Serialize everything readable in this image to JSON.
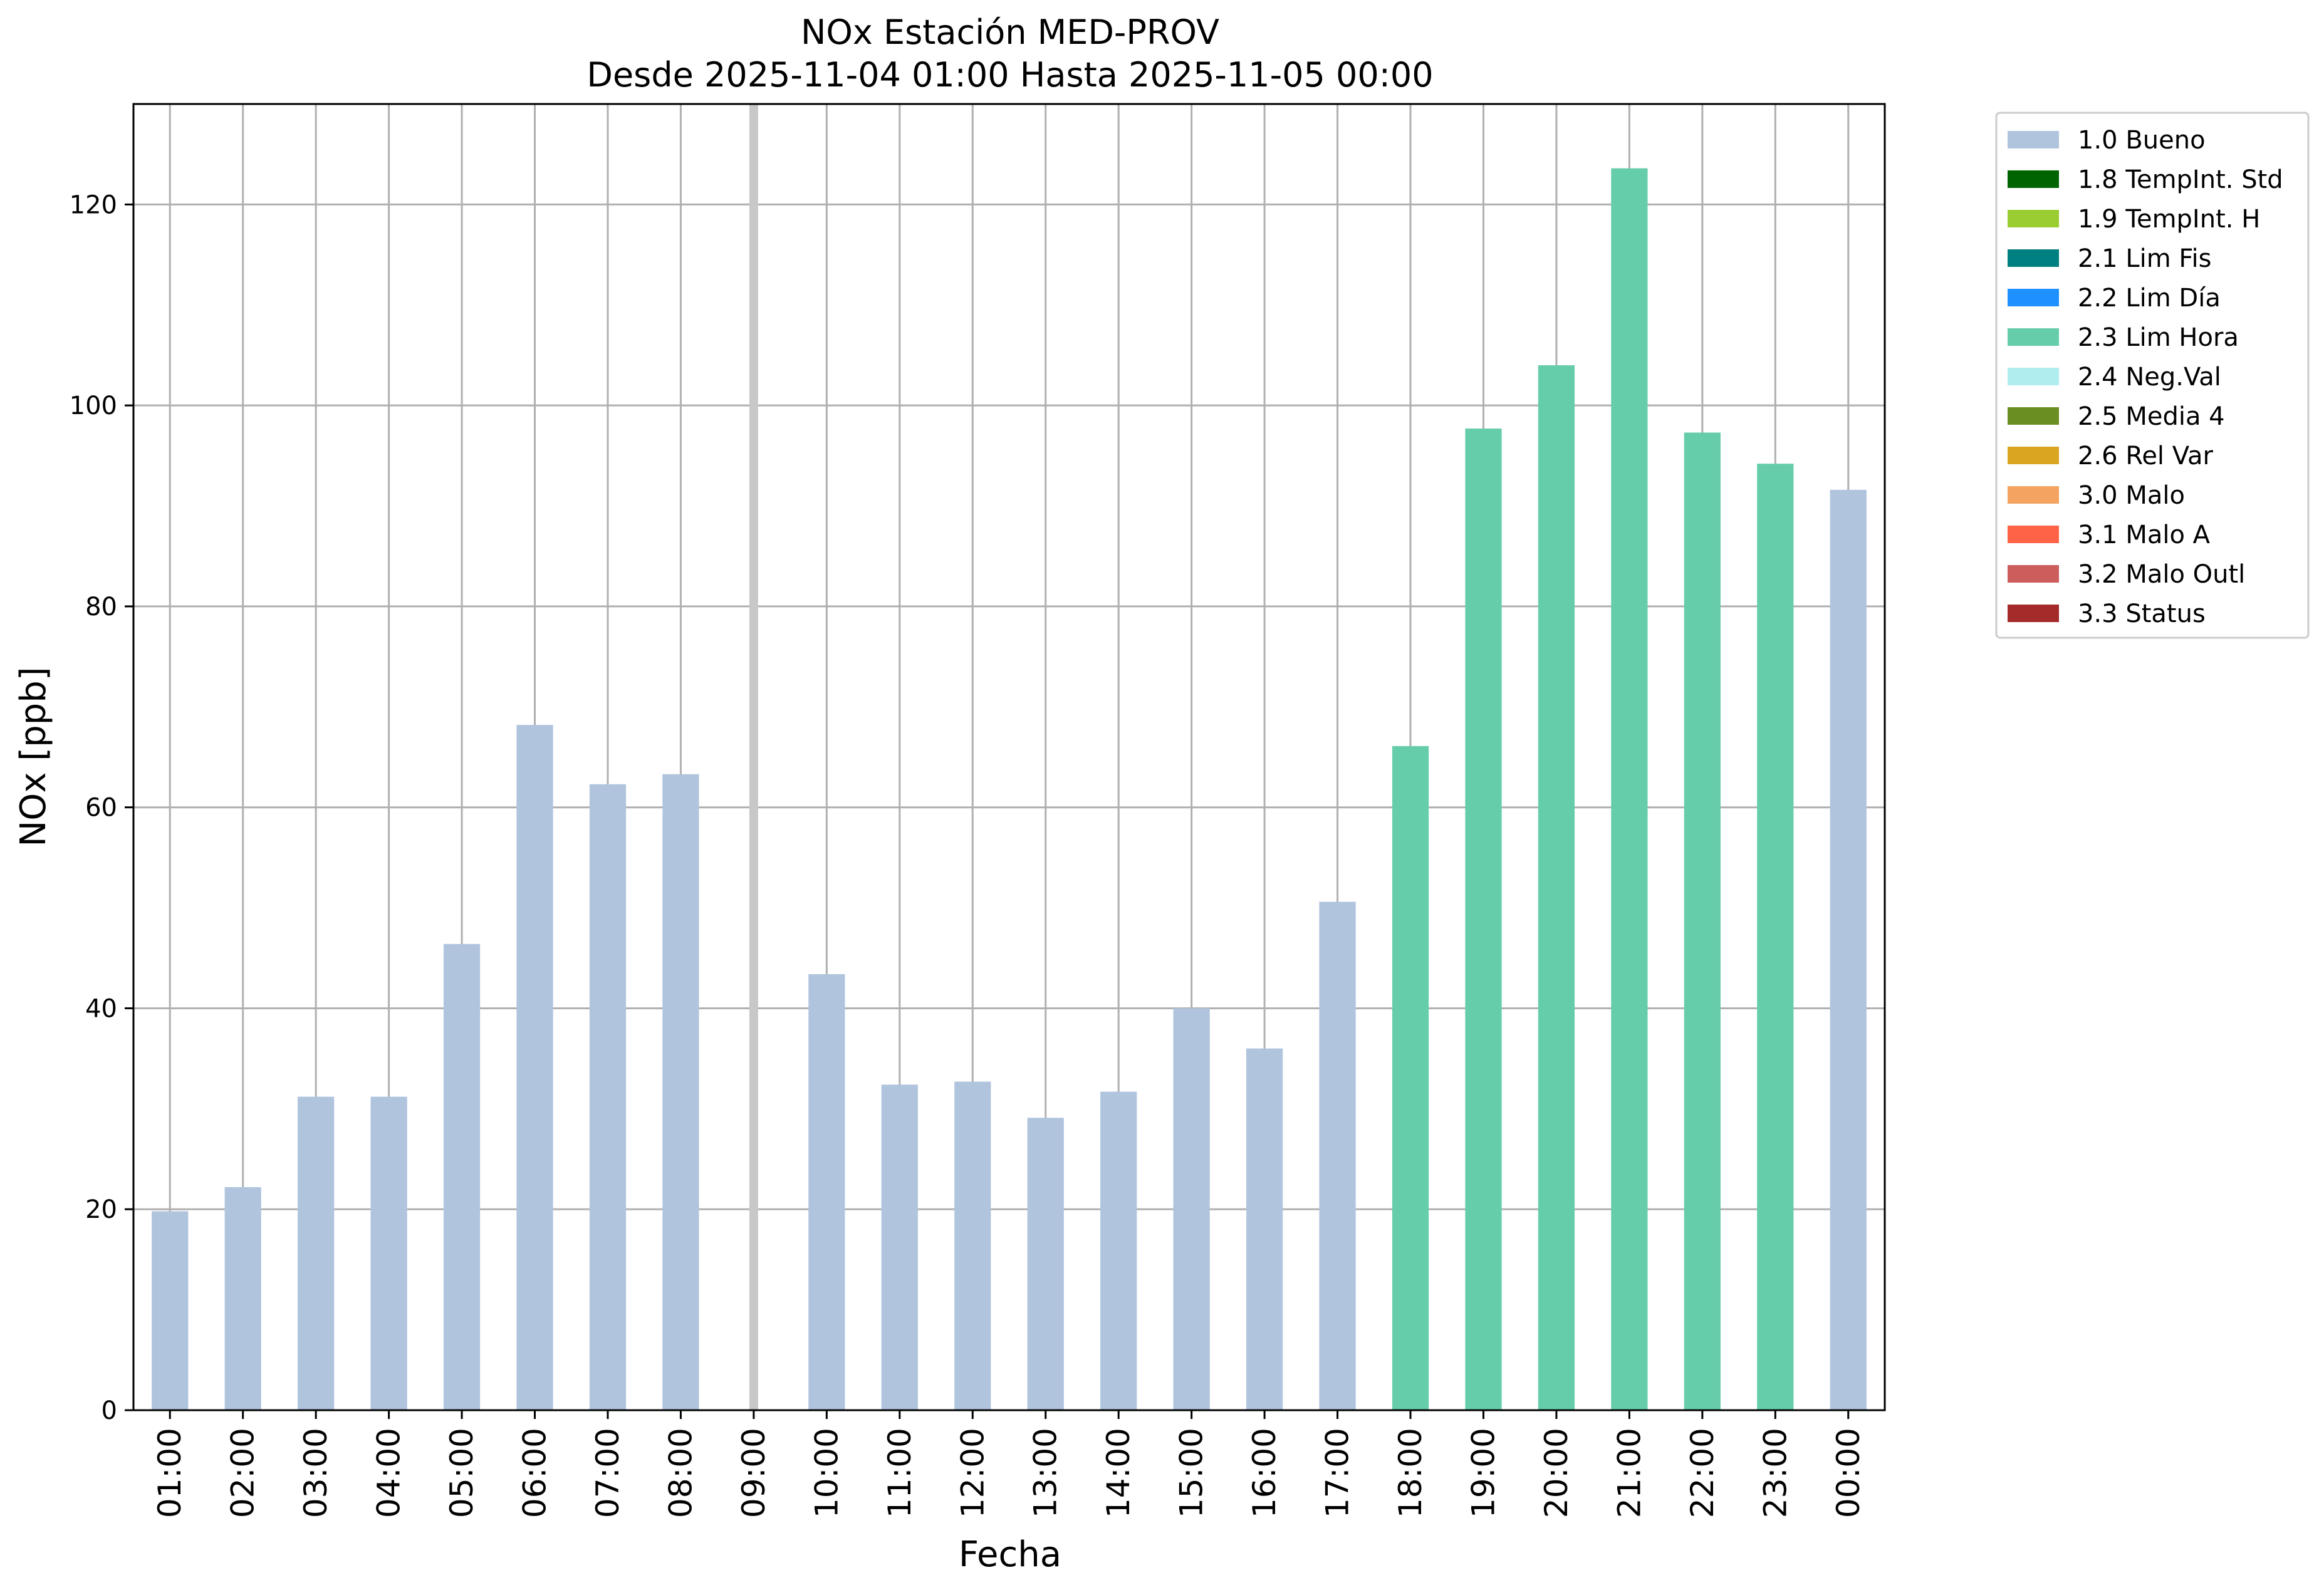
{
  "chart_data": {
    "type": "bar",
    "title": "NOx Estación MED-PROV",
    "subtitle": "Desde 2025-11-04 01:00 Hasta 2025-11-05 00:00",
    "xlabel": "Fecha",
    "ylabel": "NOx [ppb]",
    "ylim": [
      0,
      130
    ],
    "yticks": [
      0,
      20,
      40,
      60,
      80,
      100,
      120
    ],
    "grid": true,
    "legend_position": "outside-top-right",
    "categories": [
      "01:00",
      "02:00",
      "03:00",
      "04:00",
      "05:00",
      "06:00",
      "07:00",
      "08:00",
      "09:00",
      "10:00",
      "11:00",
      "12:00",
      "13:00",
      "14:00",
      "15:00",
      "16:00",
      "17:00",
      "18:00",
      "19:00",
      "20:00",
      "21:00",
      "22:00",
      "23:00",
      "00:00"
    ],
    "values": [
      19.8,
      22.2,
      31.2,
      31.2,
      46.4,
      68.2,
      62.3,
      63.3,
      null,
      43.4,
      32.4,
      32.7,
      29.1,
      31.7,
      40.0,
      36.0,
      50.6,
      66.1,
      97.7,
      104.0,
      123.6,
      97.3,
      94.2,
      91.6
    ],
    "flags": [
      "1.0 Bueno",
      "1.0 Bueno",
      "1.0 Bueno",
      "1.0 Bueno",
      "1.0 Bueno",
      "1.0 Bueno",
      "1.0 Bueno",
      "1.0 Bueno",
      null,
      "1.0 Bueno",
      "1.0 Bueno",
      "1.0 Bueno",
      "1.0 Bueno",
      "1.0 Bueno",
      "1.0 Bueno",
      "1.0 Bueno",
      "1.0 Bueno",
      "2.3 Lim Hora",
      "2.3 Lim Hora",
      "2.3 Lim Hora",
      "2.3 Lim Hora",
      "2.3 Lim Hora",
      "2.3 Lim Hora",
      "1.0 Bueno"
    ],
    "missing_marker_category": "09:00",
    "legend": [
      {
        "label": "1.0 Bueno",
        "color": "#b0c4de"
      },
      {
        "label": "1.8 TempInt. Std",
        "color": "#006400"
      },
      {
        "label": "1.9 TempInt. H",
        "color": "#9acd32"
      },
      {
        "label": "2.1 Lim Fis",
        "color": "#008080"
      },
      {
        "label": "2.2 Lim Día",
        "color": "#1e90ff"
      },
      {
        "label": "2.3 Lim Hora",
        "color": "#66cdaa"
      },
      {
        "label": "2.4 Neg.Val",
        "color": "#afeeee"
      },
      {
        "label": "2.5 Media 4",
        "color": "#6b8e23"
      },
      {
        "label": "2.6 Rel Var",
        "color": "#daa520"
      },
      {
        "label": "3.0 Malo",
        "color": "#f4a460"
      },
      {
        "label": "3.1 Malo A",
        "color": "#ff6347"
      },
      {
        "label": "3.2 Malo Outl",
        "color": "#cd5c5c"
      },
      {
        "label": "3.3 Status",
        "color": "#a52a2a"
      }
    ],
    "colors": {
      "grid": "#b0b0b0",
      "missing_marker": "#c8c8c8"
    }
  }
}
